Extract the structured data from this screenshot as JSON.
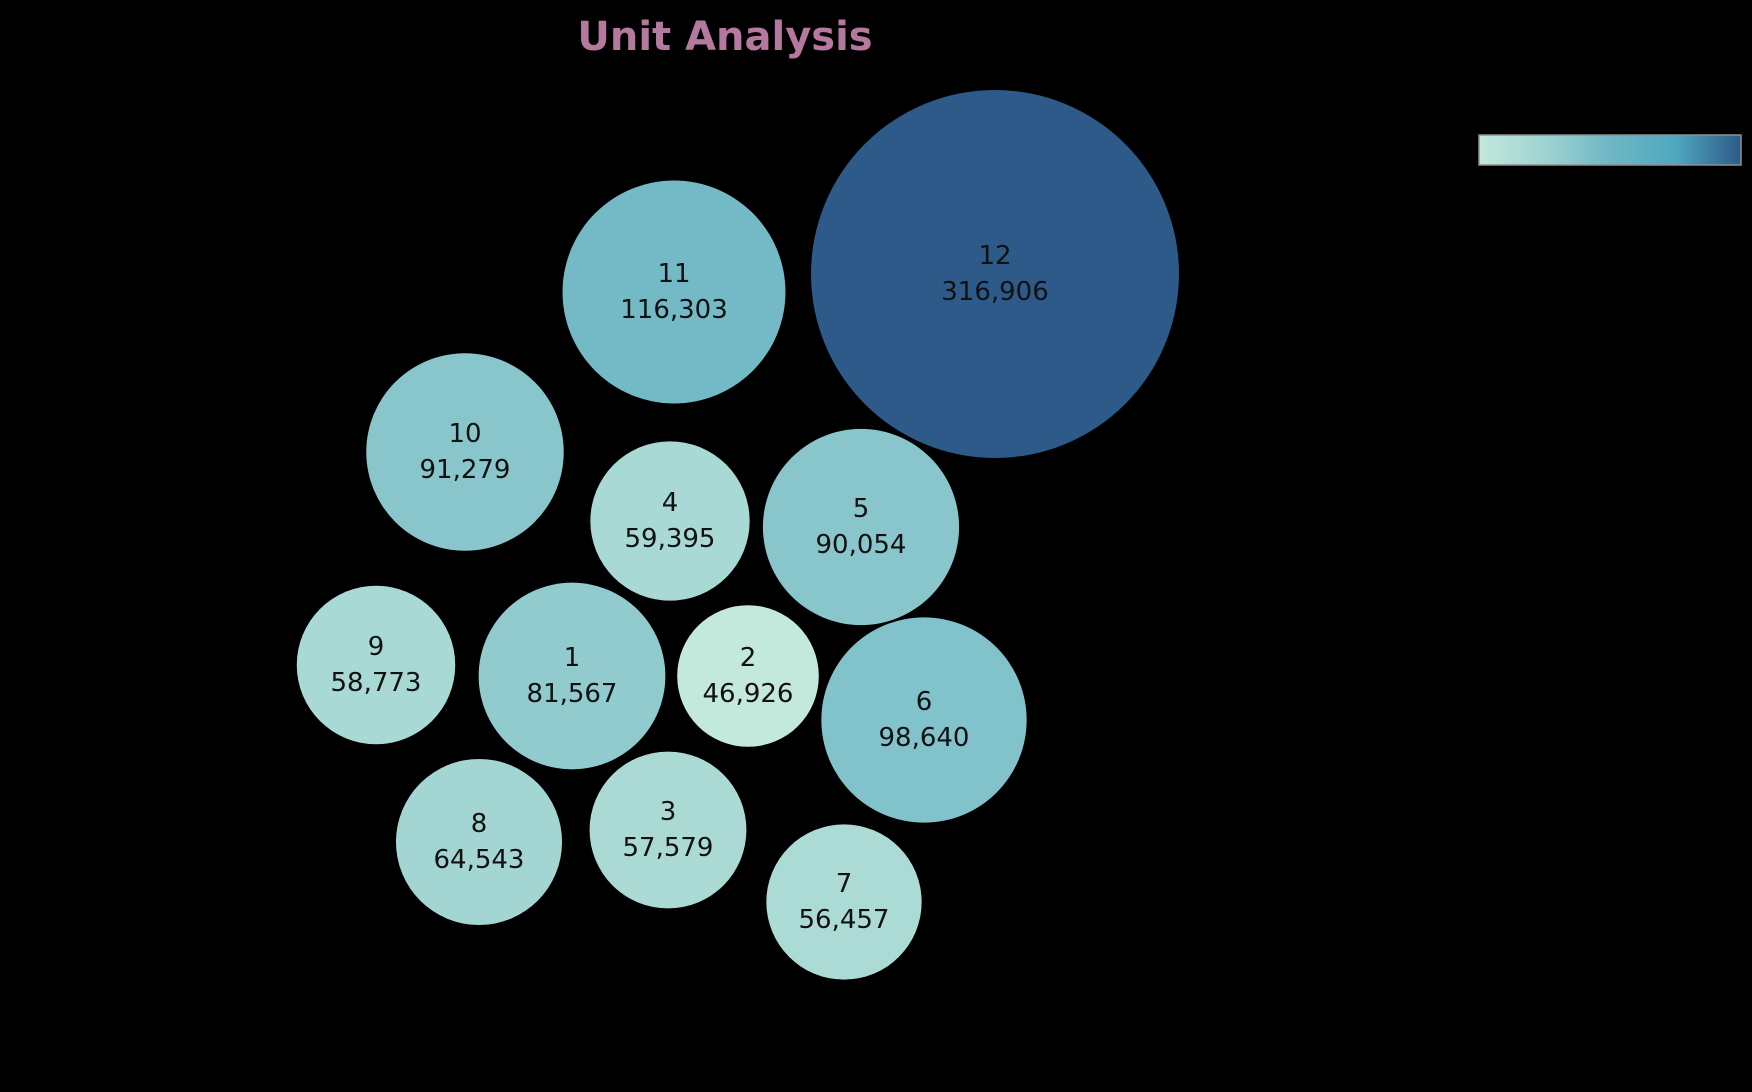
{
  "colors": {
    "background": "#000000",
    "title": "#b5799f",
    "label": "#111111",
    "scale": [
      "#c3e8dc",
      "#9fd3d1",
      "#6fb7c5",
      "#4ea8c0",
      "#2d5a88"
    ]
  },
  "chart_data": {
    "type": "bubble",
    "title": "Unit Analysis",
    "legend": {
      "type": "color-gradient",
      "placement": "top-right"
    },
    "points": [
      {
        "label": "1",
        "value": 81567,
        "display": "81,567"
      },
      {
        "label": "2",
        "value": 46926,
        "display": "46,926"
      },
      {
        "label": "3",
        "value": 57579,
        "display": "57,579"
      },
      {
        "label": "4",
        "value": 59395,
        "display": "59,395"
      },
      {
        "label": "5",
        "value": 90054,
        "display": "90,054"
      },
      {
        "label": "6",
        "value": 98640,
        "display": "98,640"
      },
      {
        "label": "7",
        "value": 56457,
        "display": "56,457"
      },
      {
        "label": "8",
        "value": 64543,
        "display": "64,543"
      },
      {
        "label": "9",
        "value": 58773,
        "display": "58,773"
      },
      {
        "label": "10",
        "value": 91279,
        "display": "91,279"
      },
      {
        "label": "11",
        "value": 116303,
        "display": "116,303"
      },
      {
        "label": "12",
        "value": 316906,
        "display": "316,906"
      }
    ]
  }
}
